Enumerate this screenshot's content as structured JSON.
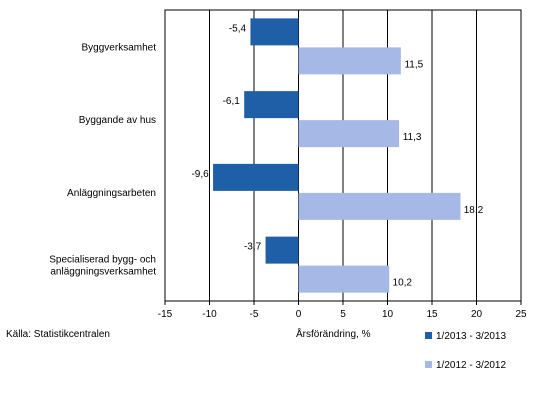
{
  "chart_data": {
    "type": "bar",
    "orientation": "horizontal",
    "categories": [
      "Byggverksamhet",
      "Byggande av hus",
      "Anläggningsarbeten",
      "Specialiserad bygg- och anläggningsverksamhet"
    ],
    "series": [
      {
        "name": "1/2013 - 3/2013",
        "color": "#1f5fa8",
        "values": [
          -5.4,
          -6.1,
          -9.6,
          -3.7
        ],
        "labels": [
          "-5,4",
          "-6,1",
          "-9,6",
          "-3,7"
        ]
      },
      {
        "name": "1/2012 - 3/2012",
        "color": "#a6b9e6",
        "values": [
          11.5,
          11.3,
          18.2,
          10.2
        ],
        "labels": [
          "11,5",
          "11,3",
          "18,2",
          "10,2"
        ]
      }
    ],
    "xlim": [
      -15,
      25
    ],
    "xticks": [
      "-15",
      "-10",
      "-5",
      "0",
      "5",
      "10",
      "15",
      "20",
      "25"
    ],
    "xlabel": "Årsförändring, %",
    "ylabel": "",
    "grid": true,
    "legend_position": "bottom-right"
  },
  "source_text": "Källa: Statistikcentralen"
}
